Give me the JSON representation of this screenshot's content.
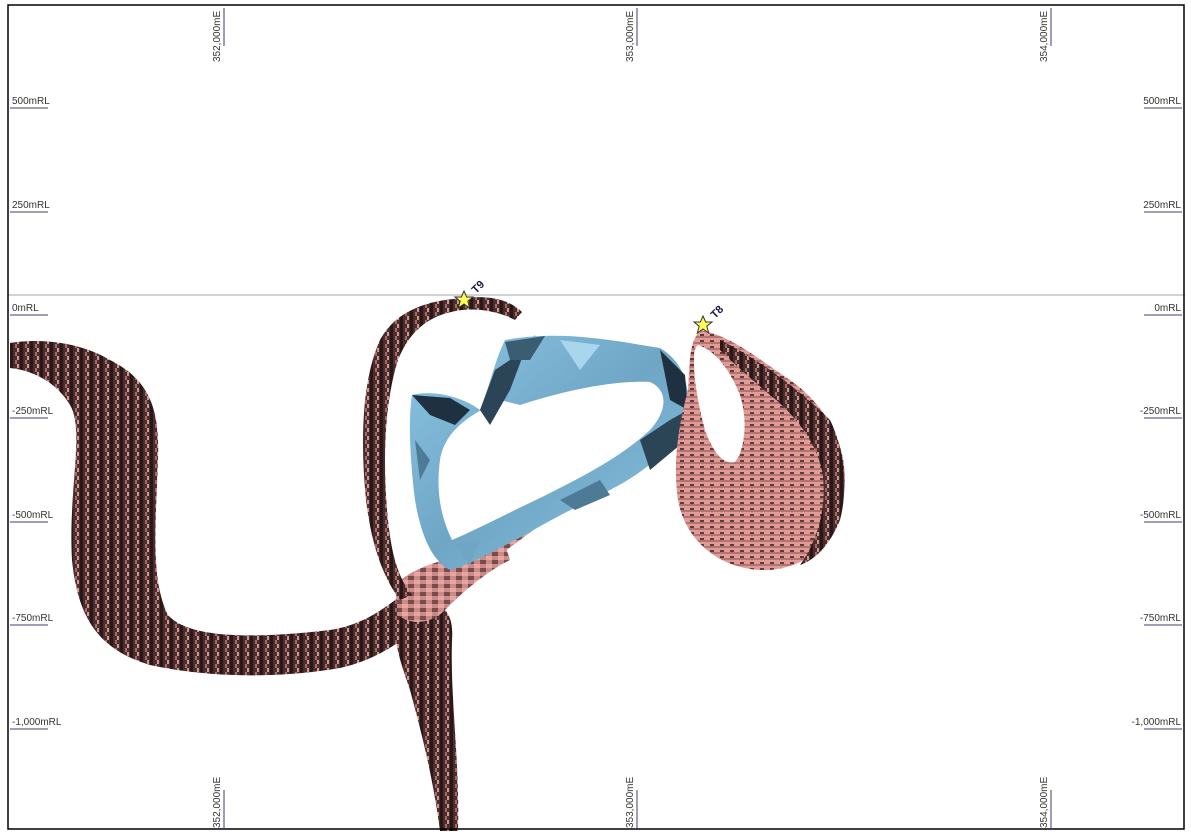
{
  "section": {
    "easting_labels": [
      "352,000mE",
      "353,000mE",
      "354,000mE"
    ],
    "rl_labels": [
      "500mRL",
      "250mRL",
      "0mRL",
      "-250mRL",
      "-500mRL",
      "-750mRL",
      "-1,000mRL"
    ]
  },
  "wells": [
    {
      "label": "T9",
      "icon": "star-icon"
    },
    {
      "label": "T8",
      "icon": "star-icon"
    }
  ],
  "colors": {
    "frame": "#000000",
    "tick": "#3d3d6b",
    "body_dark": "#2e1c1c",
    "body_mid": "#7a4d4d",
    "body_pink": "#c98a88",
    "body_light": "#eba5a1",
    "blue_dark": "#1f3140",
    "blue_mid": "#4d7a94",
    "blue_light": "#8cc4e4",
    "star": "#ffff55"
  }
}
